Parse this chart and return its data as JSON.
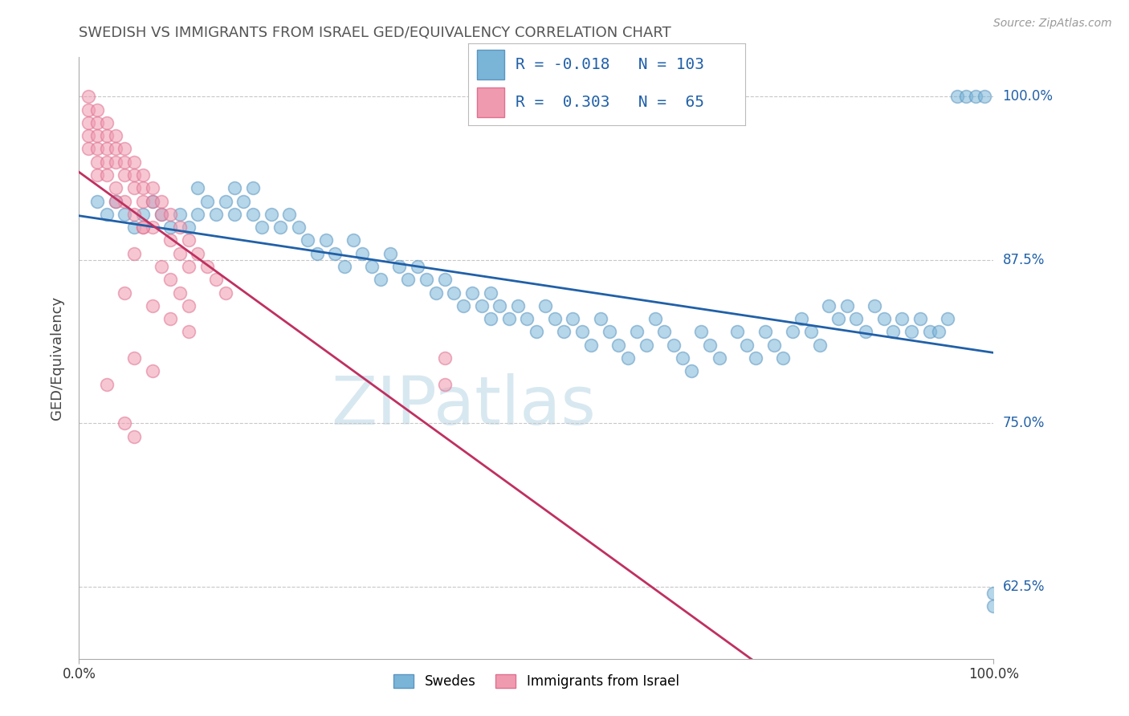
{
  "title": "SWEDISH VS IMMIGRANTS FROM ISRAEL GED/EQUIVALENCY CORRELATION CHART",
  "source": "Source: ZipAtlas.com",
  "ylabel": "GED/Equivalency",
  "yticks": [
    62.5,
    75.0,
    87.5,
    100.0
  ],
  "ytick_labels": [
    "62.5%",
    "75.0%",
    "87.5%",
    "100.0%"
  ],
  "xtick_labels": [
    "0.0%",
    "100.0%"
  ],
  "xlim": [
    0,
    100
  ],
  "ylim": [
    57,
    103
  ],
  "blue_R": -0.018,
  "blue_N": 103,
  "pink_R": 0.303,
  "pink_N": 65,
  "blue_color": "#7ab5d8",
  "pink_color": "#f09ab0",
  "blue_edge_color": "#5a95c0",
  "pink_edge_color": "#e07090",
  "blue_line_color": "#2060a8",
  "pink_line_color": "#c03060",
  "legend_blue_label": "Swedes",
  "legend_pink_label": "Immigrants from Israel",
  "background_color": "#ffffff",
  "grid_color": "#c8c8c8",
  "title_color": "#555555",
  "watermark_color": "#d8e8f0",
  "watermark_text": "ZIPatlas",
  "dot_size": 130,
  "dot_alpha": 0.55,
  "blue_x": [
    2,
    3,
    4,
    5,
    6,
    7,
    8,
    9,
    10,
    11,
    12,
    13,
    13,
    14,
    15,
    16,
    17,
    17,
    18,
    19,
    19,
    20,
    21,
    22,
    23,
    24,
    25,
    26,
    27,
    28,
    29,
    30,
    31,
    32,
    33,
    34,
    35,
    36,
    37,
    38,
    39,
    40,
    41,
    42,
    43,
    44,
    45,
    45,
    46,
    47,
    48,
    49,
    50,
    51,
    52,
    53,
    54,
    55,
    56,
    57,
    58,
    59,
    60,
    61,
    62,
    63,
    64,
    65,
    66,
    67,
    68,
    69,
    70,
    72,
    73,
    74,
    75,
    76,
    77,
    78,
    79,
    80,
    81,
    82,
    83,
    84,
    85,
    86,
    87,
    88,
    89,
    90,
    91,
    92,
    93,
    94,
    95,
    96,
    97,
    98,
    99,
    100,
    100
  ],
  "blue_y": [
    92,
    91,
    92,
    91,
    90,
    91,
    92,
    91,
    90,
    91,
    90,
    91,
    93,
    92,
    91,
    92,
    91,
    93,
    92,
    91,
    93,
    90,
    91,
    90,
    91,
    90,
    89,
    88,
    89,
    88,
    87,
    89,
    88,
    87,
    86,
    88,
    87,
    86,
    87,
    86,
    85,
    86,
    85,
    84,
    85,
    84,
    83,
    85,
    84,
    83,
    84,
    83,
    82,
    84,
    83,
    82,
    83,
    82,
    81,
    83,
    82,
    81,
    80,
    82,
    81,
    83,
    82,
    81,
    80,
    79,
    82,
    81,
    80,
    82,
    81,
    80,
    82,
    81,
    80,
    82,
    83,
    82,
    81,
    84,
    83,
    84,
    83,
    82,
    84,
    83,
    82,
    83,
    82,
    83,
    82,
    82,
    83,
    100,
    100,
    100,
    100,
    62,
    61
  ],
  "pink_x": [
    1,
    1,
    1,
    1,
    1,
    2,
    2,
    2,
    2,
    2,
    2,
    3,
    3,
    3,
    3,
    3,
    4,
    4,
    4,
    4,
    5,
    5,
    5,
    5,
    6,
    6,
    6,
    6,
    7,
    7,
    7,
    7,
    8,
    8,
    8,
    9,
    9,
    10,
    10,
    11,
    11,
    12,
    12,
    13,
    14,
    15,
    16,
    5,
    8,
    10,
    12,
    3,
    6,
    8,
    40,
    40,
    4,
    6,
    7,
    9,
    10,
    11,
    12,
    5,
    6
  ],
  "pink_y": [
    100,
    99,
    98,
    97,
    96,
    99,
    98,
    97,
    96,
    95,
    94,
    98,
    97,
    96,
    95,
    94,
    97,
    96,
    95,
    93,
    96,
    95,
    94,
    92,
    95,
    94,
    93,
    91,
    94,
    93,
    92,
    90,
    93,
    92,
    90,
    92,
    91,
    91,
    89,
    90,
    88,
    89,
    87,
    88,
    87,
    86,
    85,
    85,
    84,
    83,
    82,
    78,
    80,
    79,
    80,
    78,
    92,
    88,
    90,
    87,
    86,
    85,
    84,
    75,
    74
  ]
}
